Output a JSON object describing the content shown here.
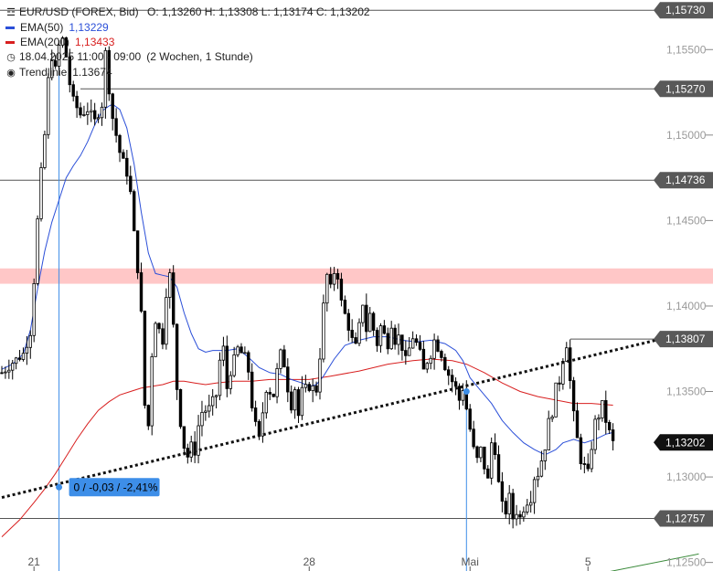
{
  "legend": {
    "instrument": "EUR/USD (FOREX, Bid)",
    "ohlc": "O: 1,13260  H: 1,13308  L: 1,13174  C: 1,13202",
    "ema50_label": "EMA(50)",
    "ema50_value": "1,13229",
    "ema200_label": "EMA(200)",
    "ema200_value": "1,13433",
    "range_text": "18.04.2025 11:00 - 09:00",
    "range_note": "(2 Wochen, 1 Stunde)",
    "trend_label": "Trendlinie",
    "trend_value": "1.13674"
  },
  "colors": {
    "ema50": "#2b4fd8",
    "ema200": "#d81f1f",
    "resistance_zone": "#ffc7c7",
    "trendline": "#111111",
    "dark_label": "#595959",
    "current_label": "#111111",
    "measure": "#3d8ee8",
    "green_line": "#3a8a3a"
  },
  "chart_data": {
    "type": "candlestick",
    "title": "EUR/USD (FOREX, Bid)",
    "ylim": [
      1.1245,
      1.1579
    ],
    "x_ticks": [
      {
        "label": "21",
        "index": 9
      },
      {
        "label": "28",
        "index": 86
      },
      {
        "label": "Mai",
        "index": 131
      },
      {
        "label": "5",
        "index": 164
      }
    ],
    "y_ticks": [
      "1,12500",
      "1,13000",
      "1,13500",
      "1,14000",
      "1,14500",
      "1,15000",
      "1,15500"
    ],
    "y_tick_values": [
      1.125,
      1.13,
      1.135,
      1.14,
      1.145,
      1.15,
      1.155
    ],
    "price_levels": [
      {
        "value": 1.1573,
        "label": "1,15730"
      },
      {
        "value": 1.1527,
        "label": "1,15270"
      },
      {
        "value": 1.14736,
        "label": "1,14736"
      },
      {
        "value": 1.13807,
        "label": "1,13807"
      },
      {
        "value": 1.12757,
        "label": "1,12757"
      }
    ],
    "current_price": {
      "value": 1.13202,
      "label": "1,13202"
    },
    "resistance_zone": [
      1.1413,
      1.1422
    ],
    "trendline": {
      "from": {
        "index": 0,
        "value": 1.1288
      },
      "to": {
        "index": 183,
        "value": 1.138
      }
    },
    "green_line": {
      "from": {
        "index": 166,
        "value": 1.1243
      },
      "to": {
        "index": 195,
        "value": 1.1255
      }
    },
    "measure": {
      "index": 16,
      "value": 1.1294,
      "label": "0 / -0,03 / -2,41%"
    },
    "markers": [
      {
        "index": 16
      },
      {
        "index": 130
      }
    ],
    "path_points": [
      [
        0,
        1.1361
      ],
      [
        3,
        1.1367
      ],
      [
        6,
        1.1372
      ],
      [
        8,
        1.1385
      ],
      [
        9,
        1.1415
      ],
      [
        10,
        1.145
      ],
      [
        11,
        1.1478
      ],
      [
        12,
        1.15
      ],
      [
        13,
        1.1532
      ],
      [
        14,
        1.1546
      ],
      [
        15,
        1.1538
      ],
      [
        16,
        1.1552
      ],
      [
        17,
        1.1556
      ],
      [
        18,
        1.1546
      ],
      [
        19,
        1.153
      ],
      [
        20,
        1.152
      ],
      [
        22,
        1.1512
      ],
      [
        24,
        1.1515
      ],
      [
        26,
        1.1508
      ],
      [
        28,
        1.1518
      ],
      [
        29,
        1.1548
      ],
      [
        30,
        1.1527
      ],
      [
        31,
        1.151
      ],
      [
        33,
        1.149
      ],
      [
        35,
        1.1478
      ],
      [
        36,
        1.1466
      ],
      [
        37,
        1.1442
      ],
      [
        38,
        1.1422
      ],
      [
        39,
        1.1395
      ],
      [
        40,
        1.1342
      ],
      [
        41,
        1.133
      ],
      [
        42,
        1.1372
      ],
      [
        43,
        1.1392
      ],
      [
        45,
        1.138
      ],
      [
        46,
        1.1408
      ],
      [
        47,
        1.1418
      ],
      [
        48,
        1.1388
      ],
      [
        49,
        1.1352
      ],
      [
        50,
        1.1332
      ],
      [
        51,
        1.1318
      ],
      [
        52,
        1.1312
      ],
      [
        53,
        1.1318
      ],
      [
        54,
        1.1315
      ],
      [
        55,
        1.133
      ],
      [
        56,
        1.1338
      ],
      [
        58,
        1.134
      ],
      [
        60,
        1.1348
      ],
      [
        61,
        1.1368
      ],
      [
        62,
        1.1375
      ],
      [
        63,
        1.1352
      ],
      [
        64,
        1.1362
      ],
      [
        66,
        1.1375
      ],
      [
        68,
        1.137
      ],
      [
        69,
        1.1362
      ],
      [
        70,
        1.1342
      ],
      [
        71,
        1.133
      ],
      [
        72,
        1.1322
      ],
      [
        73,
        1.1338
      ],
      [
        74,
        1.1352
      ],
      [
        76,
        1.1348
      ],
      [
        77,
        1.1362
      ],
      [
        78,
        1.1372
      ],
      [
        79,
        1.1366
      ],
      [
        80,
        1.1352
      ],
      [
        81,
        1.1342
      ],
      [
        82,
        1.1352
      ],
      [
        83,
        1.1336
      ],
      [
        84,
        1.135
      ],
      [
        86,
        1.1353
      ],
      [
        88,
        1.1351
      ],
      [
        89,
        1.1371
      ],
      [
        90,
        1.14
      ],
      [
        91,
        1.1418
      ],
      [
        92,
        1.141
      ],
      [
        93,
        1.142
      ],
      [
        94,
        1.1418
      ],
      [
        95,
        1.1402
      ],
      [
        96,
        1.1395
      ],
      [
        97,
        1.1388
      ],
      [
        98,
        1.138
      ],
      [
        99,
        1.1376
      ],
      [
        100,
        1.1388
      ],
      [
        101,
        1.1402
      ],
      [
        102,
        1.1386
      ],
      [
        103,
        1.1395
      ],
      [
        104,
        1.1386
      ],
      [
        105,
        1.1378
      ],
      [
        106,
        1.1388
      ],
      [
        107,
        1.1383
      ],
      [
        108,
        1.1378
      ],
      [
        109,
        1.139
      ],
      [
        110,
        1.138
      ],
      [
        111,
        1.1382
      ],
      [
        112,
        1.1376
      ],
      [
        113,
        1.1368
      ],
      [
        114,
        1.1375
      ],
      [
        115,
        1.1382
      ],
      [
        116,
        1.1378
      ],
      [
        117,
        1.1372
      ],
      [
        118,
        1.1362
      ],
      [
        119,
        1.1368
      ],
      [
        120,
        1.1372
      ],
      [
        121,
        1.138
      ],
      [
        122,
        1.1376
      ],
      [
        123,
        1.1372
      ],
      [
        124,
        1.1365
      ],
      [
        125,
        1.136
      ],
      [
        126,
        1.1356
      ],
      [
        127,
        1.1352
      ],
      [
        128,
        1.1345
      ],
      [
        129,
        1.1352
      ],
      [
        130,
        1.134
      ],
      [
        131,
        1.1328
      ],
      [
        132,
        1.1316
      ],
      [
        133,
        1.131
      ],
      [
        134,
        1.1316
      ],
      [
        135,
        1.1306
      ],
      [
        136,
        1.1298
      ],
      [
        137,
        1.132
      ],
      [
        138,
        1.1316
      ],
      [
        139,
        1.1296
      ],
      [
        140,
        1.1283
      ],
      [
        141,
        1.128
      ],
      [
        142,
        1.1288
      ],
      [
        143,
        1.1276
      ],
      [
        144,
        1.128
      ],
      [
        145,
        1.1276
      ],
      [
        146,
        1.1282
      ],
      [
        147,
        1.1286
      ],
      [
        148,
        1.1288
      ],
      [
        149,
        1.13
      ],
      [
        150,
        1.1302
      ],
      [
        151,
        1.131
      ],
      [
        152,
        1.1318
      ],
      [
        153,
        1.1332
      ],
      [
        154,
        1.1338
      ],
      [
        155,
        1.1352
      ],
      [
        156,
        1.1356
      ],
      [
        157,
        1.137
      ],
      [
        158,
        1.1378
      ],
      [
        159,
        1.1356
      ],
      [
        160,
        1.1336
      ],
      [
        161,
        1.1322
      ],
      [
        162,
        1.131
      ],
      [
        163,
        1.1306
      ],
      [
        164,
        1.1302
      ],
      [
        165,
        1.1318
      ],
      [
        166,
        1.1332
      ],
      [
        167,
        1.1336
      ],
      [
        168,
        1.1342
      ],
      [
        169,
        1.1333
      ],
      [
        170,
        1.1326
      ],
      [
        171,
        1.132
      ]
    ],
    "ema50_points": [
      [
        0,
        1.1363
      ],
      [
        3,
        1.1366
      ],
      [
        6,
        1.1372
      ],
      [
        8,
        1.1386
      ],
      [
        10,
        1.141
      ],
      [
        12,
        1.1432
      ],
      [
        14,
        1.1449
      ],
      [
        16,
        1.1462
      ],
      [
        18,
        1.1475
      ],
      [
        20,
        1.1482
      ],
      [
        22,
        1.1488
      ],
      [
        24,
        1.1496
      ],
      [
        26,
        1.1506
      ],
      [
        28,
        1.1514
      ],
      [
        30,
        1.1517
      ],
      [
        31,
        1.1518
      ],
      [
        33,
        1.1515
      ],
      [
        35,
        1.1504
      ],
      [
        37,
        1.1483
      ],
      [
        39,
        1.1455
      ],
      [
        41,
        1.1431
      ],
      [
        43,
        1.1419
      ],
      [
        45,
        1.1418
      ],
      [
        47,
        1.1417
      ],
      [
        49,
        1.1411
      ],
      [
        51,
        1.1396
      ],
      [
        53,
        1.1384
      ],
      [
        55,
        1.1375
      ],
      [
        57,
        1.1373
      ],
      [
        59,
        1.1374
      ],
      [
        61,
        1.1374
      ],
      [
        63,
        1.1374
      ],
      [
        66,
        1.1375
      ],
      [
        69,
        1.137
      ],
      [
        72,
        1.1364
      ],
      [
        75,
        1.1361
      ],
      [
        78,
        1.136
      ],
      [
        81,
        1.1357
      ],
      [
        84,
        1.1355
      ],
      [
        86,
        1.1353
      ],
      [
        88,
        1.1354
      ],
      [
        90,
        1.1359
      ],
      [
        93,
        1.1369
      ],
      [
        96,
        1.1377
      ],
      [
        100,
        1.138
      ],
      [
        104,
        1.1382
      ],
      [
        108,
        1.1382
      ],
      [
        112,
        1.138
      ],
      [
        116,
        1.1379
      ],
      [
        120,
        1.138
      ],
      [
        124,
        1.1378
      ],
      [
        127,
        1.1374
      ],
      [
        129,
        1.1368
      ],
      [
        131,
        1.1358
      ],
      [
        133,
        1.1353
      ],
      [
        135,
        1.1348
      ],
      [
        137,
        1.1343
      ],
      [
        140,
        1.1333
      ],
      [
        143,
        1.1326
      ],
      [
        146,
        1.132
      ],
      [
        149,
        1.1316
      ],
      [
        152,
        1.1313
      ],
      [
        155,
        1.1316
      ],
      [
        157,
        1.132
      ],
      [
        160,
        1.1322
      ],
      [
        163,
        1.132
      ],
      [
        166,
        1.1322
      ],
      [
        169,
        1.1325
      ],
      [
        171,
        1.1326
      ]
    ],
    "ema200_points": [
      [
        0,
        1.1265
      ],
      [
        5,
        1.1275
      ],
      [
        9,
        1.1285
      ],
      [
        12,
        1.1293
      ],
      [
        15,
        1.1302
      ],
      [
        18,
        1.1312
      ],
      [
        21,
        1.1322
      ],
      [
        24,
        1.1331
      ],
      [
        27,
        1.1339
      ],
      [
        30,
        1.1344
      ],
      [
        33,
        1.1348
      ],
      [
        36,
        1.135
      ],
      [
        39,
        1.1352
      ],
      [
        42,
        1.1353
      ],
      [
        45,
        1.1354
      ],
      [
        48,
        1.1356
      ],
      [
        51,
        1.1356
      ],
      [
        54,
        1.1355
      ],
      [
        57,
        1.1354
      ],
      [
        60,
        1.1355
      ],
      [
        65,
        1.1356
      ],
      [
        70,
        1.1356
      ],
      [
        75,
        1.1357
      ],
      [
        80,
        1.1357
      ],
      [
        86,
        1.1357
      ],
      [
        92,
        1.1359
      ],
      [
        100,
        1.1362
      ],
      [
        108,
        1.1366
      ],
      [
        115,
        1.1368
      ],
      [
        120,
        1.1369
      ],
      [
        126,
        1.1368
      ],
      [
        130,
        1.1366
      ],
      [
        135,
        1.1361
      ],
      [
        140,
        1.1355
      ],
      [
        145,
        1.135
      ],
      [
        150,
        1.1347
      ],
      [
        155,
        1.1345
      ],
      [
        160,
        1.1343
      ],
      [
        165,
        1.1343
      ],
      [
        171,
        1.1342
      ]
    ]
  }
}
